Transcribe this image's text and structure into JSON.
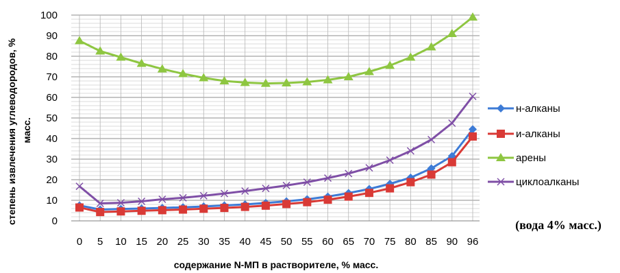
{
  "chart_data": {
    "type": "line",
    "title": "",
    "xlabel": "содержание N-МП в растворителе, % масс.",
    "ylabel_lines": [
      "степень извлечения углеводородов, %",
      "масс."
    ],
    "x": [
      "0",
      "5",
      "10",
      "15",
      "20",
      "25",
      "30",
      "35",
      "40",
      "45",
      "50",
      "55",
      "60",
      "65",
      "70",
      "75",
      "80",
      "85",
      "90",
      "96"
    ],
    "ylim": [
      0,
      100
    ],
    "yticks": [
      "0",
      "10",
      "20",
      "30",
      "40",
      "50",
      "60",
      "70",
      "80",
      "90",
      "100"
    ],
    "grid": true,
    "legend_position": "right",
    "annotation": "(вода 4% масс.)",
    "series": [
      {
        "name": "н-алканы",
        "color": "#3d7bd6",
        "marker": "diamond",
        "values": [
          7.5,
          5.5,
          5.8,
          6.0,
          6.3,
          6.6,
          7.0,
          7.5,
          8.0,
          8.7,
          9.5,
          10.5,
          11.8,
          13.5,
          15.5,
          18.0,
          21.0,
          25.5,
          31.5,
          44.5
        ]
      },
      {
        "name": "и-алканы",
        "color": "#d93a36",
        "marker": "square",
        "values": [
          6.5,
          4.3,
          4.6,
          4.9,
          5.2,
          5.5,
          5.9,
          6.3,
          6.8,
          7.4,
          8.2,
          9.1,
          10.3,
          11.8,
          13.6,
          15.8,
          18.8,
          22.5,
          28.5,
          41.0
        ]
      },
      {
        "name": "арены",
        "color": "#8ec641",
        "marker": "triangle",
        "values": [
          87.5,
          82.5,
          79.5,
          76.5,
          73.8,
          71.5,
          69.5,
          68.0,
          67.2,
          66.8,
          67.0,
          67.5,
          68.5,
          70.0,
          72.5,
          75.5,
          79.5,
          84.5,
          91.0,
          99.0
        ]
      },
      {
        "name": "циклоалканы",
        "color": "#7f4fa6",
        "marker": "x",
        "values": [
          16.8,
          8.5,
          8.8,
          9.5,
          10.5,
          11.2,
          12.2,
          13.3,
          14.5,
          15.8,
          17.2,
          18.8,
          20.8,
          23.0,
          25.8,
          29.5,
          34.0,
          39.5,
          47.5,
          60.5
        ]
      }
    ]
  }
}
